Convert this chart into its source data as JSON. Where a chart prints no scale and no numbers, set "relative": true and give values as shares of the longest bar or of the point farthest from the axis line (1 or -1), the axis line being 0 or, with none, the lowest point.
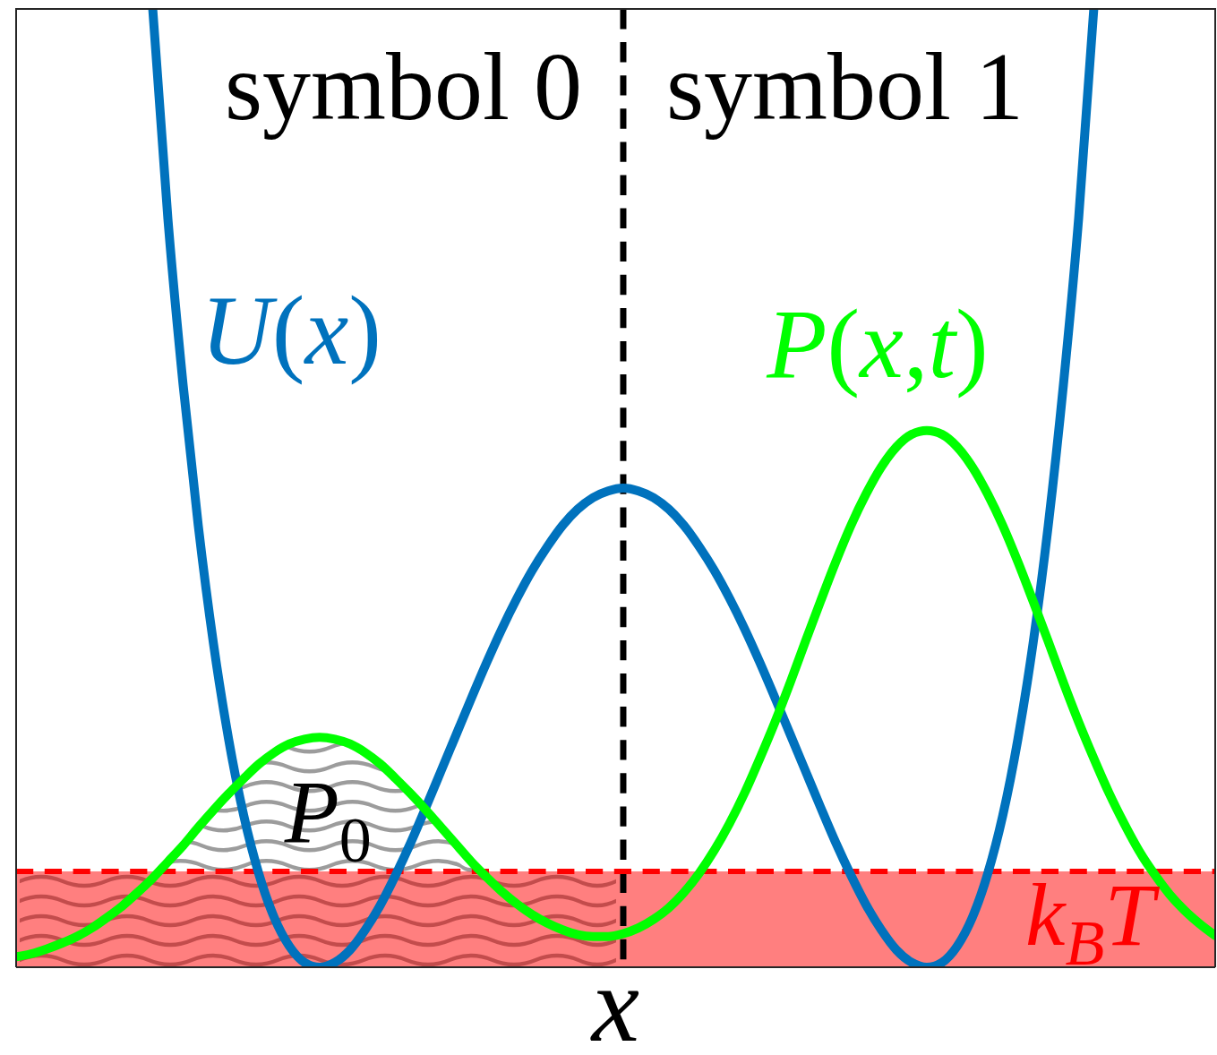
{
  "chart_data": {
    "type": "line",
    "relative": true,
    "xlabel": "x",
    "categories": [
      null,
      null,
      null,
      null,
      null,
      null,
      null,
      null,
      null,
      null,
      null,
      null,
      null,
      null,
      null,
      null,
      null,
      null,
      null,
      null,
      null,
      null,
      null,
      null,
      null,
      null,
      null,
      null,
      null,
      null,
      null,
      null,
      null,
      null,
      null,
      null,
      null,
      null,
      null,
      null,
      null,
      null,
      null,
      null,
      null,
      null,
      null,
      null,
      null,
      null,
      null,
      null,
      null,
      null,
      null,
      null,
      null,
      null,
      null,
      null,
      null,
      null,
      null,
      null,
      null,
      null,
      null,
      null,
      null,
      null,
      null,
      null,
      null,
      null,
      null,
      null,
      null,
      null,
      null,
      null
    ],
    "series": [
      {
        "name": "U(x)",
        "color": "#0072bd",
        "values": [
          null,
          null,
          null,
          null,
          null,
          null,
          null,
          null,
          null,
          1,
          0.781,
          0.608,
          0.461,
          0.338,
          0.238,
          0.158,
          0.097,
          0.052,
          0.022,
          0.005,
          0,
          0.005,
          0.018,
          0.039,
          0.065,
          0.096,
          0.13,
          0.167,
          0.205,
          0.243,
          0.281,
          0.318,
          0.353,
          0.385,
          0.414,
          0.439,
          0.461,
          0.478,
          0.49,
          0.497,
          0.5,
          0.497,
          0.49,
          0.478,
          0.461,
          0.439,
          0.414,
          0.385,
          0.353,
          0.318,
          0.281,
          0.243,
          0.205,
          0.167,
          0.13,
          0.096,
          0.065,
          0.039,
          0.018,
          0.005,
          0,
          0.005,
          0.022,
          0.052,
          0.097,
          0.158,
          0.238,
          0.338,
          0.461,
          0.608,
          0.781,
          1,
          null,
          null,
          null,
          null,
          null,
          null,
          null,
          null
        ]
      },
      {
        "name": "P(x,t)",
        "color": "#00ff00",
        "values": [
          0.011,
          0.014,
          0.019,
          0.025,
          0.032,
          0.041,
          0.052,
          0.064,
          0.078,
          0.093,
          0.11,
          0.127,
          0.146,
          0.164,
          0.181,
          0.197,
          0.212,
          0.224,
          0.233,
          0.238,
          0.24,
          0.238,
          0.233,
          0.224,
          0.212,
          0.197,
          0.181,
          0.164,
          0.146,
          0.128,
          0.11,
          0.094,
          0.079,
          0.066,
          0.055,
          0.046,
          0.039,
          0.034,
          0.032,
          0.032,
          0.035,
          0.041,
          0.05,
          0.062,
          0.078,
          0.098,
          0.122,
          0.15,
          0.182,
          0.218,
          0.256,
          0.297,
          0.34,
          0.382,
          0.423,
          0.461,
          0.494,
          0.522,
          0.543,
          0.556,
          0.56,
          0.556,
          0.543,
          0.522,
          0.494,
          0.461,
          0.423,
          0.382,
          0.34,
          0.297,
          0.256,
          0.218,
          0.182,
          0.15,
          0.121,
          0.097,
          0.076,
          0.059,
          0.045,
          0.033
        ]
      }
    ],
    "bands": [
      {
        "axis": "y",
        "from": 0,
        "to": 0.1,
        "label": "k$_{B}$T",
        "color": "#ff0000"
      }
    ],
    "ref_lines": [
      {
        "axis": "y",
        "value": 0.1,
        "color": "#ff0000",
        "line_style": "dashed"
      }
    ],
    "annotations": [
      "symbol 0",
      "symbol 1",
      "P$_{0}$"
    ]
  }
}
